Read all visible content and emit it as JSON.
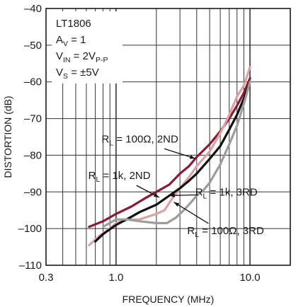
{
  "chart_data": {
    "type": "line",
    "xlabel": "FREQUENCY (MHz)",
    "ylabel": "DISTORTION (dB)",
    "x_scale": "log",
    "xlim": [
      0.3,
      20
    ],
    "ylim": [
      -110,
      -40
    ],
    "grid": true,
    "x_ticks": [
      {
        "value": 0.3,
        "label": "0.3"
      },
      {
        "value": 1.0,
        "label": "1.0"
      },
      {
        "value": 10.0,
        "label": "10.0"
      }
    ],
    "y_ticks": [
      {
        "value": -40,
        "label": "–40"
      },
      {
        "value": -50,
        "label": "–50"
      },
      {
        "value": -60,
        "label": "–60"
      },
      {
        "value": -70,
        "label": "–70"
      },
      {
        "value": -80,
        "label": "–80"
      },
      {
        "value": -90,
        "label": "–90"
      },
      {
        "value": -100,
        "label": "–100"
      },
      {
        "value": -110,
        "label": "–110"
      }
    ],
    "conditions": [
      {
        "main": "LT1806",
        "sub": "",
        "rest": ""
      },
      {
        "main": "A",
        "sub": "V",
        "rest": " = 1"
      },
      {
        "main": "V",
        "sub": "IN",
        "rest": " = 2V"
      },
      {
        "main": "V",
        "sub": "S",
        "rest": " = ±5V"
      }
    ],
    "vin_suffix_sub": "P-P",
    "series": [
      {
        "name": "R_L = 100Ω, 2ND",
        "color": "#8b1a35",
        "x": [
          0.63,
          0.8,
          1.0,
          1.3,
          1.6,
          2.0,
          2.5,
          3.0,
          3.5,
          4.0,
          5.0,
          6.0,
          7.0,
          8.0,
          9.0,
          10.0
        ],
        "y": [
          -99.5,
          -98,
          -96,
          -94,
          -92,
          -90,
          -88,
          -85,
          -83,
          -80.5,
          -77,
          -73.5,
          -70,
          -66.5,
          -63,
          -59
        ]
      },
      {
        "name": "R_L = 1k, 2ND",
        "color": "#dca2a3",
        "x": [
          0.63,
          0.75,
          0.9,
          1.0,
          1.2,
          1.5,
          2.0,
          2.3,
          2.6,
          3.0,
          3.5,
          4.0,
          5.0,
          6.0,
          7.0,
          8.0,
          9.0,
          10.0
        ],
        "y": [
          -104.5,
          -102,
          -100,
          -98.5,
          -97.5,
          -97.5,
          -96,
          -95,
          -92,
          -89,
          -86,
          -83,
          -79,
          -74,
          -69,
          -64,
          -61,
          -56
        ]
      },
      {
        "name": "R_L = 1k, 3RD",
        "color": "#111111",
        "x": [
          0.7,
          0.8,
          1.0,
          1.2,
          1.5,
          2.0,
          2.5,
          3.0,
          3.5,
          4.0,
          5.0,
          6.0,
          7.0,
          8.0,
          9.0,
          10.0
        ],
        "y": [
          -103.5,
          -101.5,
          -99,
          -97.5,
          -95.5,
          -93.5,
          -91,
          -89,
          -87,
          -85,
          -81,
          -77.5,
          -73,
          -69,
          -64.5,
          -60
        ]
      },
      {
        "name": "R_L = 100Ω, 3RD",
        "color": "#9d9d9d",
        "x": [
          0.8,
          1.0,
          1.2,
          1.5,
          2.0,
          2.4,
          2.8,
          3.2,
          3.6,
          4.0,
          4.5,
          5.0,
          6.0,
          7.0,
          8.0,
          9.0,
          10.0
        ],
        "y": [
          -99.5,
          -97.5,
          -97.5,
          -98,
          -98.5,
          -98.5,
          -97,
          -95,
          -93,
          -91,
          -89.5,
          -87.5,
          -82.5,
          -77,
          -72,
          -66,
          -60
        ]
      }
    ],
    "labels": [
      {
        "main": "R",
        "sub": "L",
        "rest": " = 100Ω, 2ND",
        "x": 0.78,
        "y": -76.5,
        "arrow_to": [
          3.9,
          -80.9
        ]
      },
      {
        "main": "R",
        "sub": "L",
        "rest": " = 1k, 2ND",
        "x": 0.62,
        "y": -86.5,
        "arrow_to": [
          2.1,
          -91.5
        ]
      },
      {
        "main": "R",
        "sub": "L",
        "rest": " = 1k, 3RD",
        "x": 3.9,
        "y": -91,
        "arrow_to": [
          2.5,
          -91
        ]
      },
      {
        "main": "R",
        "sub": "L",
        "rest": " = 100Ω, 3RD",
        "x": 3.4,
        "y": -101.5,
        "arrow_to": [
          2.7,
          -92.8
        ]
      }
    ]
  }
}
